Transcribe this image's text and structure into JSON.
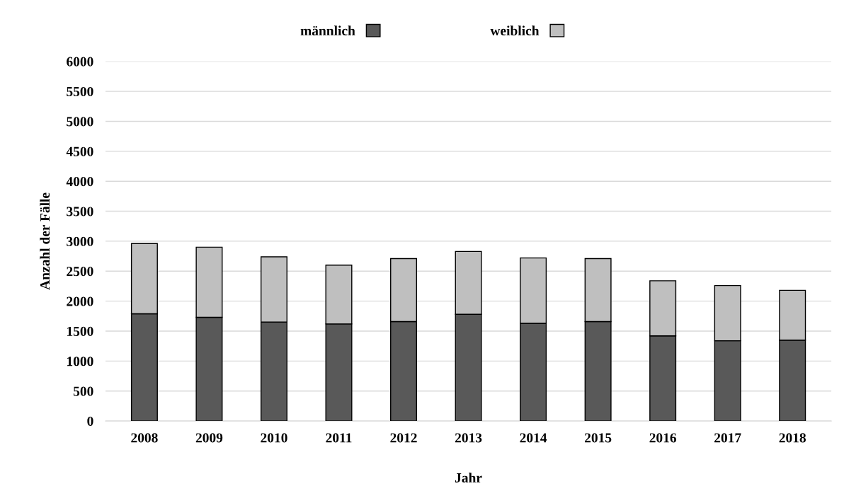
{
  "chart_data": {
    "type": "bar",
    "stacked": true,
    "xlabel": "Jahr",
    "ylabel": "Anzahl der Fälle",
    "categories": [
      "2008",
      "2009",
      "2010",
      "2011",
      "2012",
      "2013",
      "2014",
      "2015",
      "2016",
      "2017",
      "2018"
    ],
    "series": [
      {
        "name": "männlich",
        "color": "#595959",
        "values": [
          1790,
          1730,
          1650,
          1620,
          1660,
          1780,
          1630,
          1660,
          1420,
          1340,
          1350
        ]
      },
      {
        "name": "weiblich",
        "color": "#bfbfbf",
        "values": [
          1170,
          1170,
          1090,
          980,
          1050,
          1050,
          1090,
          1050,
          920,
          920,
          830
        ]
      }
    ],
    "ylim": [
      0,
      6000
    ],
    "yticks": [
      0,
      500,
      1000,
      1500,
      2000,
      2500,
      3000,
      3500,
      4000,
      4500,
      5000,
      5500,
      6000
    ],
    "grid": "y",
    "legend": "top"
  }
}
